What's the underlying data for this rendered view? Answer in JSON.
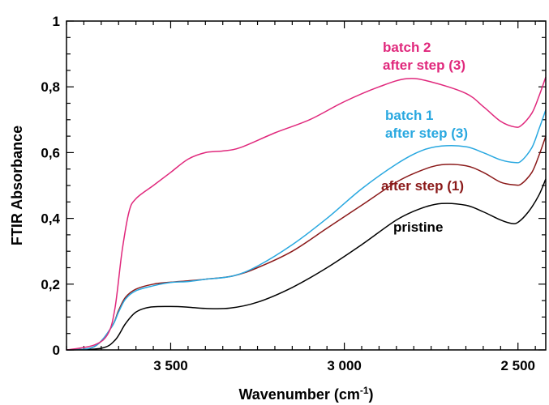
{
  "chart_data": {
    "type": "line",
    "xlabel": "Wavenumber (cm",
    "xlabel_sup": "-1",
    "xlabel_suffix": ")",
    "ylabel": "FTIR Absorbance",
    "xlim": [
      3800,
      2420
    ],
    "ylim": [
      0,
      1
    ],
    "x_ticks": [
      {
        "value": 3500,
        "label": "3 500"
      },
      {
        "value": 3000,
        "label": "3 000"
      },
      {
        "value": 2500,
        "label": "2 500"
      }
    ],
    "y_ticks": [
      {
        "value": 0,
        "label": "0"
      },
      {
        "value": 0.2,
        "label": "0,2"
      },
      {
        "value": 0.4,
        "label": "0,4"
      },
      {
        "value": 0.6,
        "label": "0,6"
      },
      {
        "value": 0.8,
        "label": "0,8"
      },
      {
        "value": 1,
        "label": "1"
      }
    ],
    "grid": false,
    "series": [
      {
        "name": "pristine",
        "color": "#000000",
        "label_lines": [
          "pristine"
        ],
        "points": [
          [
            3800,
            0
          ],
          [
            3700,
            0.005
          ],
          [
            3660,
            0.03
          ],
          [
            3630,
            0.08
          ],
          [
            3600,
            0.115
          ],
          [
            3560,
            0.13
          ],
          [
            3500,
            0.132
          ],
          [
            3450,
            0.13
          ],
          [
            3400,
            0.126
          ],
          [
            3330,
            0.127
          ],
          [
            3250,
            0.145
          ],
          [
            3150,
            0.19
          ],
          [
            3050,
            0.25
          ],
          [
            2950,
            0.32
          ],
          [
            2850,
            0.395
          ],
          [
            2780,
            0.43
          ],
          [
            2720,
            0.445
          ],
          [
            2650,
            0.44
          ],
          [
            2600,
            0.42
          ],
          [
            2550,
            0.395
          ],
          [
            2520,
            0.385
          ],
          [
            2500,
            0.388
          ],
          [
            2470,
            0.42
          ],
          [
            2440,
            0.47
          ],
          [
            2420,
            0.52
          ]
        ]
      },
      {
        "name": "after step (1)",
        "color": "#8b1a1a",
        "label_lines": [
          "after step (1)"
        ],
        "points": [
          [
            3800,
            0
          ],
          [
            3720,
            0.01
          ],
          [
            3670,
            0.07
          ],
          [
            3650,
            0.12
          ],
          [
            3630,
            0.16
          ],
          [
            3600,
            0.185
          ],
          [
            3550,
            0.2
          ],
          [
            3500,
            0.206
          ],
          [
            3450,
            0.21
          ],
          [
            3400,
            0.215
          ],
          [
            3320,
            0.225
          ],
          [
            3250,
            0.25
          ],
          [
            3150,
            0.3
          ],
          [
            3050,
            0.37
          ],
          [
            2950,
            0.44
          ],
          [
            2850,
            0.51
          ],
          [
            2780,
            0.545
          ],
          [
            2720,
            0.563
          ],
          [
            2650,
            0.56
          ],
          [
            2600,
            0.54
          ],
          [
            2550,
            0.51
          ],
          [
            2510,
            0.502
          ],
          [
            2490,
            0.505
          ],
          [
            2460,
            0.54
          ],
          [
            2440,
            0.59
          ],
          [
            2420,
            0.65
          ]
        ]
      },
      {
        "name": "batch 1 after step (3)",
        "color": "#29a8e0",
        "label_lines": [
          "batch 1",
          "after step (3)"
        ],
        "points": [
          [
            3800,
            0
          ],
          [
            3720,
            0.01
          ],
          [
            3670,
            0.07
          ],
          [
            3650,
            0.115
          ],
          [
            3630,
            0.155
          ],
          [
            3600,
            0.18
          ],
          [
            3550,
            0.195
          ],
          [
            3500,
            0.205
          ],
          [
            3450,
            0.208
          ],
          [
            3400,
            0.215
          ],
          [
            3320,
            0.225
          ],
          [
            3250,
            0.255
          ],
          [
            3150,
            0.32
          ],
          [
            3050,
            0.4
          ],
          [
            2950,
            0.49
          ],
          [
            2850,
            0.565
          ],
          [
            2780,
            0.605
          ],
          [
            2720,
            0.62
          ],
          [
            2650,
            0.618
          ],
          [
            2600,
            0.6
          ],
          [
            2550,
            0.578
          ],
          [
            2510,
            0.57
          ],
          [
            2490,
            0.575
          ],
          [
            2460,
            0.615
          ],
          [
            2440,
            0.67
          ],
          [
            2420,
            0.73
          ]
        ]
      },
      {
        "name": "batch 2 after step (3)",
        "color": "#e0287c",
        "label_lines": [
          "batch 2",
          "after step (3)"
        ],
        "points": [
          [
            3800,
            0
          ],
          [
            3720,
            0.015
          ],
          [
            3680,
            0.05
          ],
          [
            3660,
            0.13
          ],
          [
            3640,
            0.3
          ],
          [
            3620,
            0.42
          ],
          [
            3600,
            0.46
          ],
          [
            3550,
            0.5
          ],
          [
            3500,
            0.54
          ],
          [
            3450,
            0.58
          ],
          [
            3400,
            0.6
          ],
          [
            3350,
            0.605
          ],
          [
            3300,
            0.615
          ],
          [
            3200,
            0.66
          ],
          [
            3100,
            0.7
          ],
          [
            3000,
            0.755
          ],
          [
            2900,
            0.8
          ],
          [
            2820,
            0.825
          ],
          [
            2750,
            0.815
          ],
          [
            2650,
            0.78
          ],
          [
            2600,
            0.74
          ],
          [
            2550,
            0.695
          ],
          [
            2510,
            0.678
          ],
          [
            2490,
            0.683
          ],
          [
            2460,
            0.72
          ],
          [
            2440,
            0.77
          ],
          [
            2420,
            0.83
          ]
        ]
      }
    ]
  }
}
